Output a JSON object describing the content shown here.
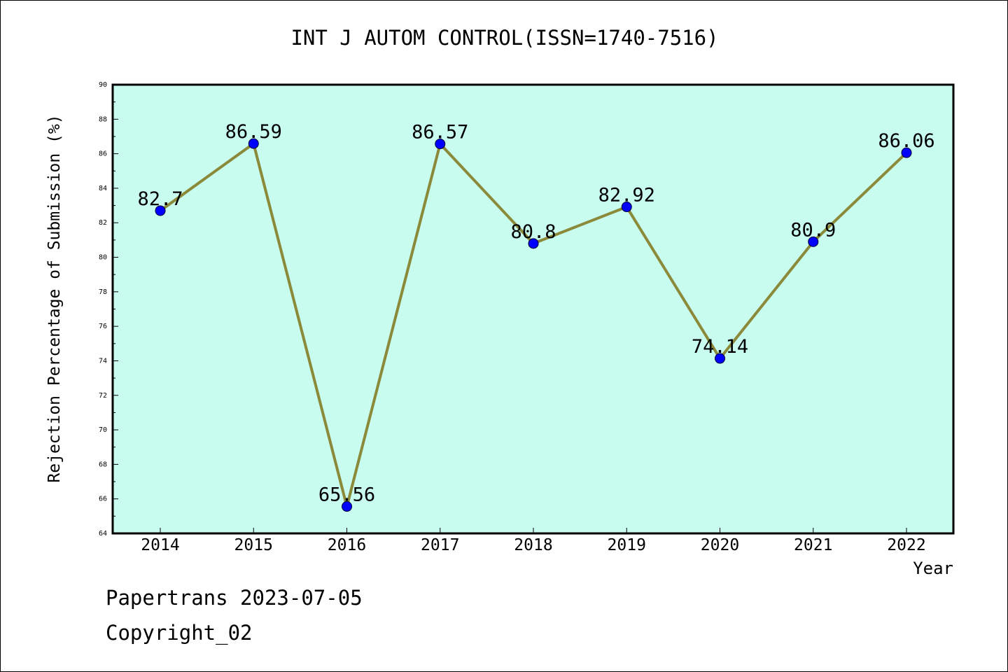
{
  "chart_data": {
    "type": "line",
    "title": "INT J AUTOM CONTROL(ISSN=1740-7516)",
    "xlabel": "Year",
    "ylabel": "Rejection Percentage of Submission (%)",
    "categories": [
      "2014",
      "2015",
      "2016",
      "2017",
      "2018",
      "2019",
      "2020",
      "2021",
      "2022"
    ],
    "series": [
      {
        "values": [
          82.7,
          86.59,
          65.56,
          86.57,
          80.8,
          82.92,
          74.14,
          80.9,
          86.06
        ],
        "labels": [
          "82.7",
          "86.59",
          "65.56",
          "86.57",
          "80.8",
          "82.92",
          "74.14",
          "80.9",
          "86.06"
        ]
      }
    ],
    "ylim": [
      64,
      90
    ],
    "yticks": [
      "64",
      "66",
      "68",
      "70",
      "72",
      "74",
      "76",
      "78",
      "80",
      "82",
      "84",
      "86",
      "88",
      "90"
    ],
    "grid": false,
    "colors": {
      "plot_background": "#c8fcee",
      "line": "#8b8a3a",
      "marker": "#0000ff"
    }
  },
  "footer": {
    "line1": "Papertrans 2023-07-05",
    "line2": "Copyright_02"
  }
}
